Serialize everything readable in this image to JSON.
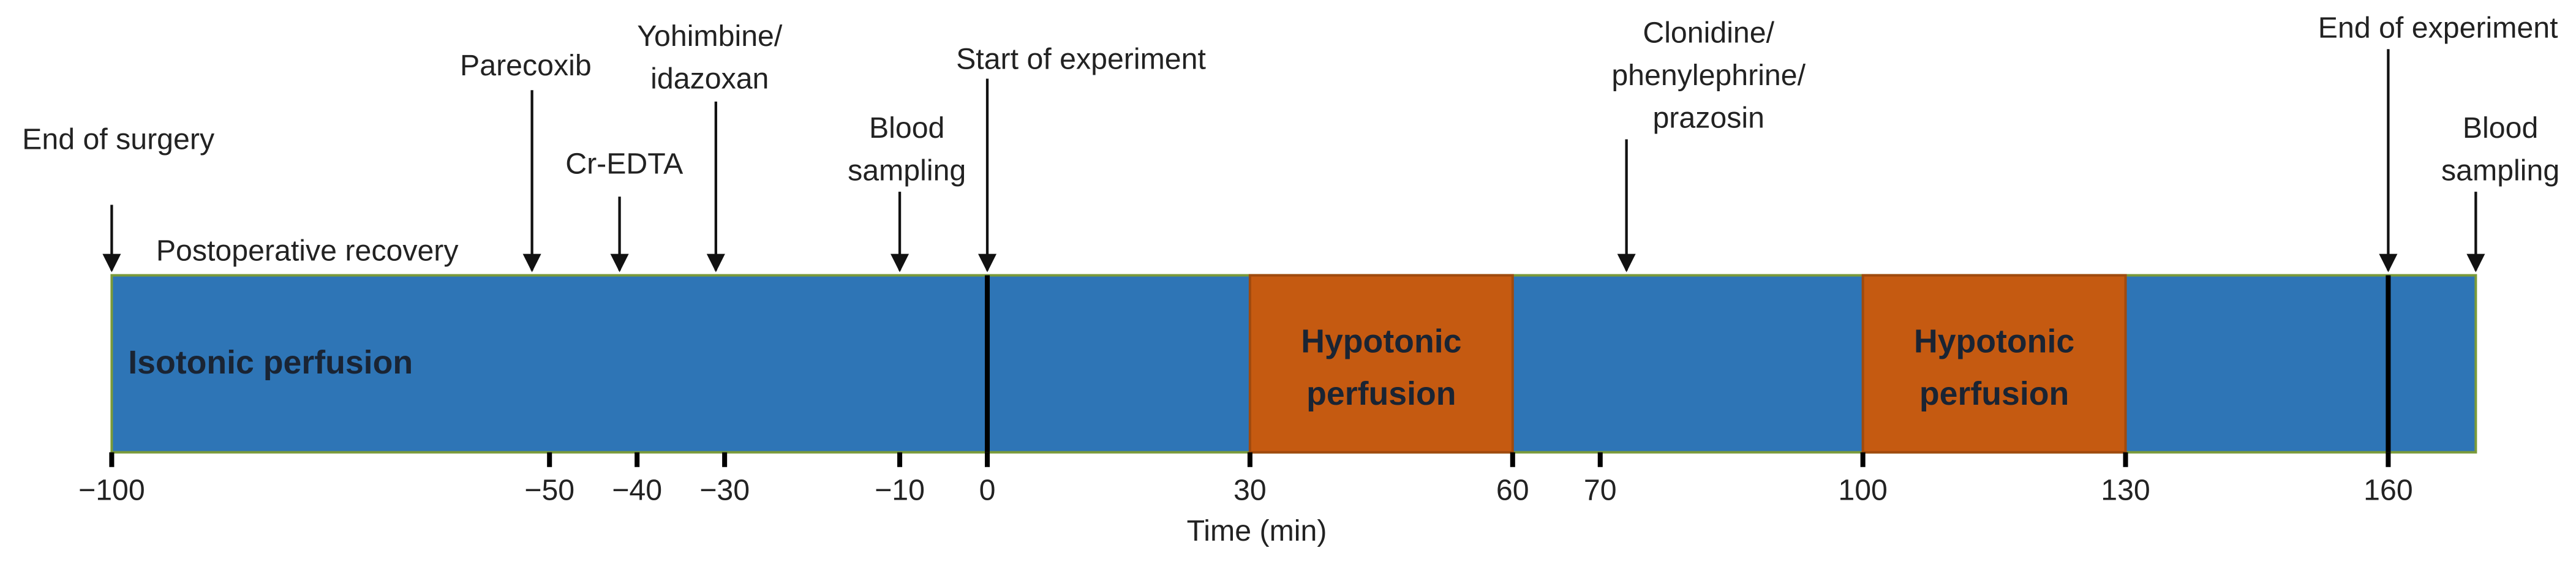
{
  "axis": {
    "label": "Time (min)",
    "range": [
      -100,
      170
    ],
    "ticks": [
      {
        "value": -100,
        "label": "−100"
      },
      {
        "value": -50,
        "label": "−50"
      },
      {
        "value": -40,
        "label": "−40"
      },
      {
        "value": -30,
        "label": "−30"
      },
      {
        "value": -10,
        "label": "−10"
      },
      0,
      30,
      60,
      70,
      100,
      130,
      160
    ]
  },
  "segments": [
    {
      "label": "Isotonic perfusion",
      "start": -100,
      "end": 170,
      "color": "#2e75b6"
    },
    {
      "label": "Hypotonic perfusion",
      "start": 30,
      "end": 60,
      "color": "#c55a11"
    },
    {
      "label": "Hypotonic perfusion",
      "start": 100,
      "end": 130,
      "color": "#c55a11"
    }
  ],
  "markers": [
    0,
    160
  ],
  "phase_label": "Postoperative recovery",
  "events": [
    {
      "time": -100,
      "label": [
        "End of surgery"
      ]
    },
    {
      "time": -52,
      "label": [
        "Parecoxib"
      ]
    },
    {
      "time": -42,
      "label": [
        "Cr-EDTA"
      ]
    },
    {
      "time": -31,
      "label": [
        "Yohimbine/",
        "idazoxan"
      ]
    },
    {
      "time": -10,
      "label": [
        "Blood",
        "sampling"
      ]
    },
    {
      "time": 0,
      "label": [
        "Start of experiment"
      ]
    },
    {
      "time": 73,
      "label": [
        "Clonidine/",
        "phenylephrine/",
        "prazosin"
      ]
    },
    {
      "time": 160,
      "label": [
        "End of experiment"
      ]
    },
    {
      "time": 170,
      "label": [
        "Blood",
        "sampling"
      ]
    }
  ]
}
